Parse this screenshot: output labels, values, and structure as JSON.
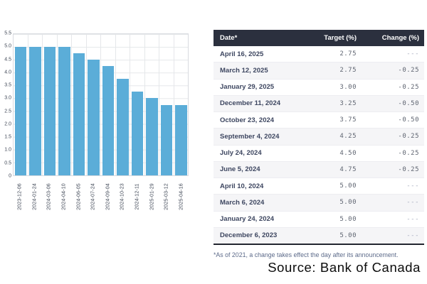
{
  "colors": {
    "bar": "#5BADD8",
    "table_header_bg": "#2B303E",
    "table_header_text": "#FFFFFF",
    "row_alt_bg": "#F5F5F7",
    "grid_line": "#E5E7EA",
    "date_text": "#3D4660",
    "number_text": "#5F6571",
    "muted_text": "#A6ABBD",
    "footnote_text": "#5D6B8A"
  },
  "chart_data": {
    "type": "bar",
    "title": "",
    "xlabel": "",
    "ylabel": "",
    "categories": [
      "2023-12-06",
      "2024-01-24",
      "2024-03-06",
      "2024-04-10",
      "2024-06-05",
      "2024-07-24",
      "2024-09-04",
      "2024-10-23",
      "2024-12-11",
      "2025-01-29",
      "2025-03-12",
      "2025-04-16"
    ],
    "values": [
      5.0,
      5.0,
      5.0,
      5.0,
      4.75,
      4.5,
      4.25,
      3.75,
      3.25,
      3.0,
      2.75,
      2.75
    ],
    "ylim": [
      0,
      5.5
    ],
    "ytick_labels": [
      "0",
      "0.5",
      "1.0",
      "1.5",
      "2.0",
      "2.5",
      "3.0",
      "3.5",
      "4.0",
      "4.5",
      "5.0",
      "5.5"
    ],
    "grid": true,
    "legend": false,
    "bar_color": "#5BADD8"
  },
  "table": {
    "headers": [
      "Date*",
      "Target (%)",
      "Change (%)"
    ],
    "rows": [
      {
        "date": "April 16, 2025",
        "target": "2.75",
        "change": "---"
      },
      {
        "date": "March 12, 2025",
        "target": "2.75",
        "change": "-0.25"
      },
      {
        "date": "January 29, 2025",
        "target": "3.00",
        "change": "-0.25"
      },
      {
        "date": "December 11, 2024",
        "target": "3.25",
        "change": "-0.50"
      },
      {
        "date": "October 23, 2024",
        "target": "3.75",
        "change": "-0.50"
      },
      {
        "date": "September 4, 2024",
        "target": "4.25",
        "change": "-0.25"
      },
      {
        "date": "July 24, 2024",
        "target": "4.50",
        "change": "-0.25"
      },
      {
        "date": "June 5, 2024",
        "target": "4.75",
        "change": "-0.25"
      },
      {
        "date": "April 10, 2024",
        "target": "5.00",
        "change": "---"
      },
      {
        "date": "March 6, 2024",
        "target": "5.00",
        "change": "---"
      },
      {
        "date": "January 24, 2024",
        "target": "5.00",
        "change": "---"
      },
      {
        "date": "December 6, 2023",
        "target": "5.00",
        "change": "---"
      }
    ],
    "footnote": "*As of 2021, a change takes effect the day after its announcement."
  },
  "source": "Source: Bank of Canada"
}
